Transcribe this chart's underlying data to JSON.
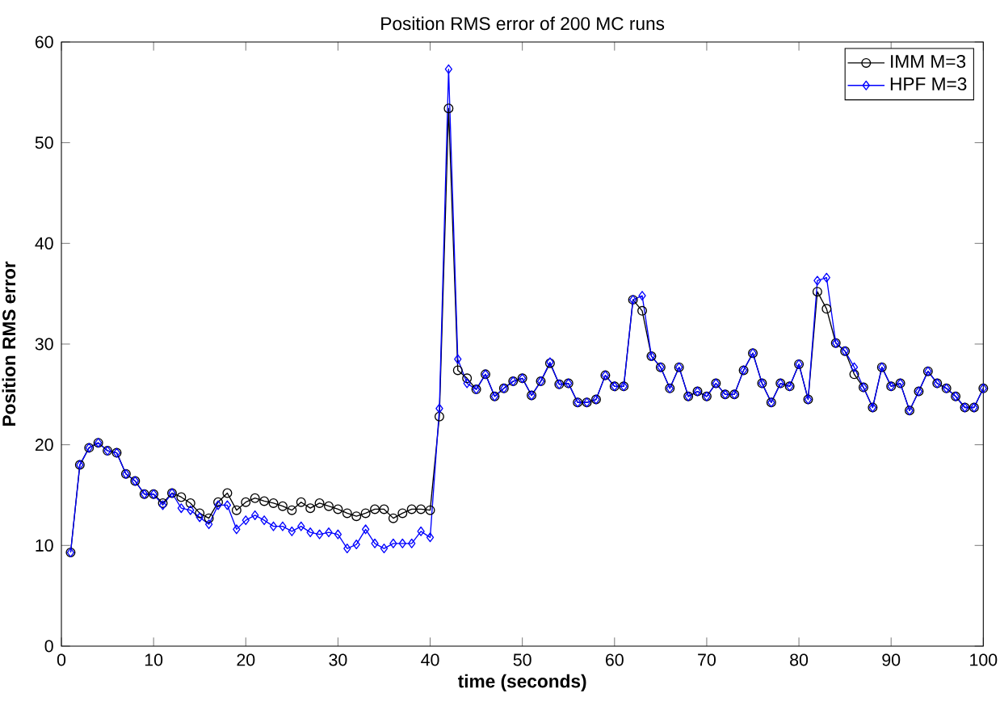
{
  "chart_data": {
    "type": "line",
    "title": "Position RMS error of 200 MC runs",
    "xlabel": "time (seconds)",
    "ylabel": "Position RMS error",
    "x": [
      1,
      2,
      3,
      4,
      5,
      6,
      7,
      8,
      9,
      10,
      11,
      12,
      13,
      14,
      15,
      16,
      17,
      18,
      19,
      20,
      21,
      22,
      23,
      24,
      25,
      26,
      27,
      28,
      29,
      30,
      31,
      32,
      33,
      34,
      35,
      36,
      37,
      38,
      39,
      40,
      41,
      42,
      43,
      44,
      45,
      46,
      47,
      48,
      49,
      50,
      51,
      52,
      53,
      54,
      55,
      56,
      57,
      58,
      59,
      60,
      61,
      62,
      63,
      64,
      65,
      66,
      67,
      68,
      69,
      70,
      71,
      72,
      73,
      74,
      75,
      76,
      77,
      78,
      79,
      80,
      81,
      82,
      83,
      84,
      85,
      86,
      87,
      88,
      89,
      90,
      91,
      92,
      93,
      94,
      95,
      96,
      97,
      98,
      99,
      100
    ],
    "series": [
      {
        "name": "IMM M=3",
        "color": "#000000",
        "marker": "circle",
        "values": [
          9.3,
          18.0,
          19.7,
          20.2,
          19.4,
          19.2,
          17.1,
          16.4,
          15.1,
          15.1,
          14.2,
          15.2,
          14.8,
          14.2,
          13.2,
          12.7,
          14.3,
          15.2,
          13.5,
          14.3,
          14.7,
          14.4,
          14.2,
          13.9,
          13.5,
          14.3,
          13.7,
          14.2,
          13.9,
          13.6,
          13.2,
          12.9,
          13.2,
          13.6,
          13.6,
          12.7,
          13.2,
          13.6,
          13.6,
          13.5,
          22.8,
          53.4,
          27.4,
          26.6,
          25.5,
          27.0,
          24.8,
          25.6,
          26.3,
          26.6,
          24.9,
          26.3,
          28.1,
          26.0,
          26.1,
          24.2,
          24.2,
          24.5,
          26.9,
          25.8,
          25.8,
          34.4,
          33.3,
          28.8,
          27.7,
          25.6,
          27.7,
          24.8,
          25.3,
          24.8,
          26.1,
          25.0,
          25.0,
          27.4,
          29.1,
          26.1,
          24.2,
          26.1,
          25.8,
          28.0,
          24.5,
          35.2,
          33.5,
          30.1,
          29.3,
          27.0,
          25.7,
          23.7,
          27.7,
          25.8,
          26.1,
          23.4,
          25.3,
          27.3,
          26.1,
          25.6,
          24.8,
          23.7,
          23.7,
          25.6
        ]
      },
      {
        "name": "HPF M=3",
        "color": "#0000ff",
        "marker": "diamond",
        "values": [
          9.3,
          18.0,
          19.7,
          20.2,
          19.4,
          19.2,
          17.1,
          16.4,
          15.1,
          15.1,
          14.0,
          15.2,
          13.7,
          13.5,
          12.8,
          12.1,
          14.0,
          14.0,
          11.6,
          12.5,
          13.0,
          12.5,
          11.9,
          11.9,
          11.4,
          11.9,
          11.3,
          11.1,
          11.3,
          11.1,
          9.7,
          10.1,
          11.6,
          10.2,
          9.7,
          10.2,
          10.2,
          10.2,
          11.4,
          10.8,
          23.6,
          57.3,
          28.5,
          26.1,
          25.5,
          27.0,
          24.8,
          25.6,
          26.3,
          26.6,
          24.9,
          26.3,
          28.2,
          26.0,
          26.1,
          24.2,
          24.2,
          24.5,
          26.9,
          25.8,
          25.8,
          34.4,
          34.8,
          28.8,
          27.7,
          25.6,
          27.7,
          24.8,
          25.3,
          24.8,
          26.1,
          25.0,
          25.0,
          27.4,
          29.1,
          26.1,
          24.2,
          26.1,
          25.8,
          28.0,
          24.5,
          36.3,
          36.6,
          30.1,
          29.3,
          27.7,
          25.7,
          23.7,
          27.7,
          25.8,
          26.1,
          23.4,
          25.3,
          27.3,
          26.1,
          25.6,
          24.8,
          23.7,
          23.7,
          25.6
        ]
      }
    ],
    "xlim": [
      0,
      100
    ],
    "xticks": [
      0,
      10,
      20,
      30,
      40,
      50,
      60,
      70,
      80,
      90,
      100
    ],
    "ylim": [
      0,
      60
    ],
    "yticks": [
      0,
      10,
      20,
      30,
      40,
      50,
      60
    ],
    "legend": "top right",
    "grid": false,
    "line_style": "solid"
  }
}
